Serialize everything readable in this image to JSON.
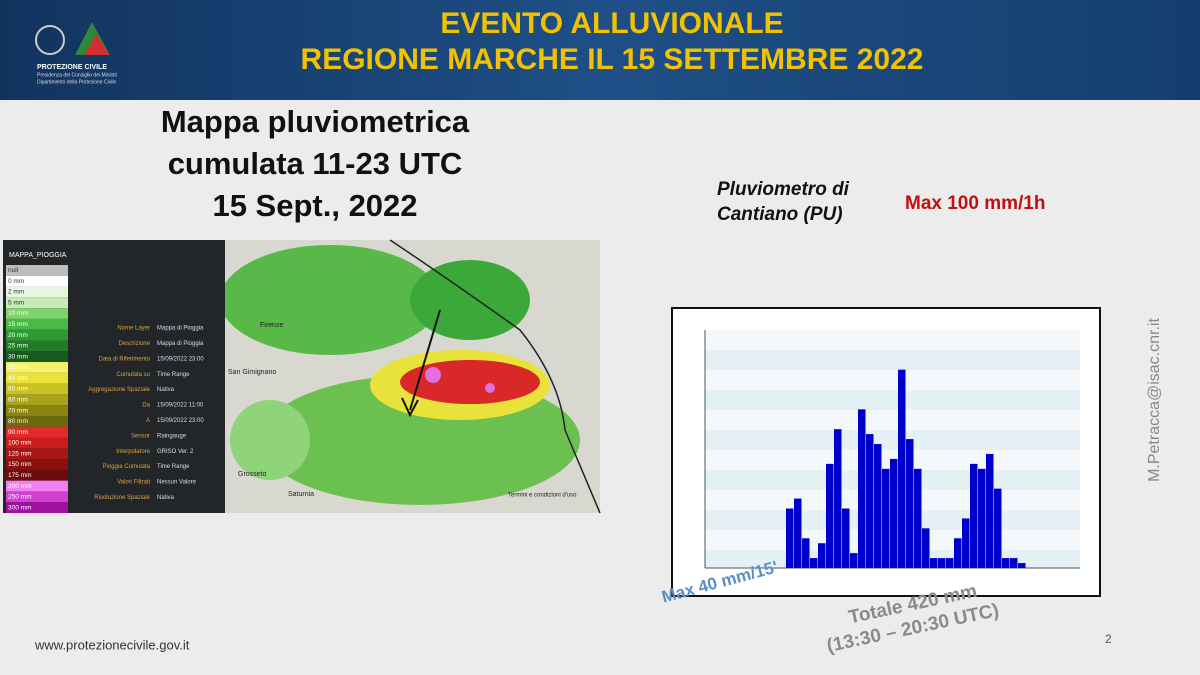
{
  "header": {
    "title_lines": [
      "EVENTO ALLUVIONALE",
      "REGIONE MARCHE IL 15 SETTEMBRE 2022"
    ],
    "logo_text": "PROTEZIONE CIVILE",
    "logo_subtext": [
      "Presidenza del Consiglio dei Ministri",
      "Dipartimento della Protezione Civile"
    ]
  },
  "map_title_lines": [
    "Mappa pluviometrica",
    "cumulata 11-23 UTC",
    "15 Sept., 2022"
  ],
  "map": {
    "legend_title": "MAPPA_PIOGGIA",
    "legend": [
      {
        "label": "null",
        "color": "#bdbdbd"
      },
      {
        "label": "0 mm",
        "color": "#ffffff"
      },
      {
        "label": "2 mm",
        "color": "#e8f5e0"
      },
      {
        "label": "5 mm",
        "color": "#c8eab8"
      },
      {
        "label": "10 mm",
        "color": "#7ed36a"
      },
      {
        "label": "15 mm",
        "color": "#4cb848"
      },
      {
        "label": "20 mm",
        "color": "#2f9a35"
      },
      {
        "label": "25 mm",
        "color": "#237a28"
      },
      {
        "label": "30 mm",
        "color": "#1a5a1e"
      },
      {
        "label": "35 mm",
        "color": "#f6f36a"
      },
      {
        "label": "40 mm",
        "color": "#e8e23a"
      },
      {
        "label": "50 mm",
        "color": "#c9c226"
      },
      {
        "label": "60 mm",
        "color": "#a9a31c"
      },
      {
        "label": "70 mm",
        "color": "#8a8614"
      },
      {
        "label": "80 mm",
        "color": "#6c690e"
      },
      {
        "label": "90 mm",
        "color": "#e52a2a"
      },
      {
        "label": "100 mm",
        "color": "#c81e1e"
      },
      {
        "label": "125 mm",
        "color": "#a81616"
      },
      {
        "label": "150 mm",
        "color": "#8a1010"
      },
      {
        "label": "175 mm",
        "color": "#6e0c0c"
      },
      {
        "label": "200 mm",
        "color": "#f080f0"
      },
      {
        "label": "250 mm",
        "color": "#d040d0"
      },
      {
        "label": "300 mm",
        "color": "#a010a0"
      }
    ],
    "info": [
      [
        "Nome Layer",
        "Mappa di Pioggia"
      ],
      [
        "Descrizione",
        "Mappa di Pioggia"
      ],
      [
        "Data di Riferimento",
        "15/09/2022 23:00"
      ],
      [
        "Cumulata su",
        "Time Range"
      ],
      [
        "Aggregazione Spaziale",
        "Nativa"
      ],
      [
        "Da",
        "15/09/2022 11:00"
      ],
      [
        "A",
        "15/09/2022 23:00"
      ],
      [
        "Sensor",
        "Raingauge"
      ],
      [
        "Interpolatore",
        "GRISO Ver. 2"
      ],
      [
        "Pioggia Cumulata",
        "Time Range"
      ],
      [
        "Valori Filtrati",
        "Nessun Valore"
      ],
      [
        "Risoluzione Spaziale",
        "Nativa"
      ]
    ],
    "places": [
      "Firenze",
      "San Gimignano",
      "Grosseto",
      "Saturnia"
    ],
    "attribution": "Termini e condizioni d'uso"
  },
  "gauge_title_lines": [
    "Pluviometro di",
    "Cantiano (PU)"
  ],
  "max_hourly": "Max 100 mm/1h",
  "chart_data": {
    "type": "bar",
    "color": "#0000cc",
    "values": [
      12,
      14,
      6,
      2,
      5,
      21,
      28,
      12,
      3,
      32,
      27,
      25,
      20,
      22,
      40,
      26,
      20,
      8,
      2,
      2,
      2,
      6,
      10,
      21,
      20,
      23,
      16,
      2,
      2,
      1
    ],
    "ylim": [
      0,
      48
    ]
  },
  "annotations": {
    "max_15min": "Max 40 mm/15'",
    "total_lines": [
      "Totale 420 mm",
      "(13:30 – 20:30 UTC)"
    ]
  },
  "author_email": "M.Petracca@isac.cnr.it",
  "footer_url": "www.protezionecivile.gov.it",
  "page_number": "2"
}
